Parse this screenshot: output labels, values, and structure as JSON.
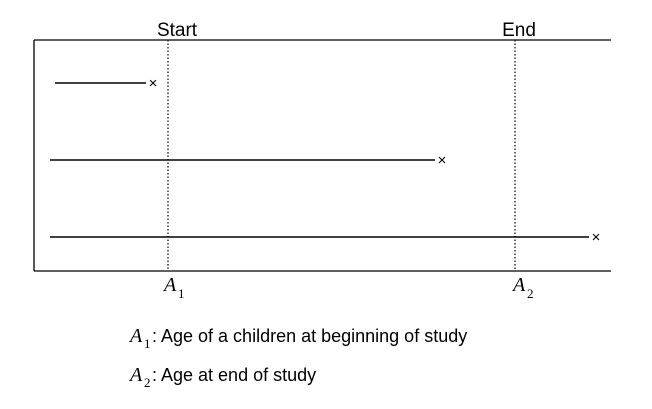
{
  "markers": {
    "start_label": "Start",
    "end_label": "End"
  },
  "axis": {
    "a1": {
      "symbol": "A",
      "subscript": "1"
    },
    "a2": {
      "symbol": "A",
      "subscript": "2"
    }
  },
  "follow_up_lines": [
    {
      "id": "child-1",
      "end_symbol": "×"
    },
    {
      "id": "child-2",
      "end_symbol": "×"
    },
    {
      "id": "child-3",
      "end_symbol": "×"
    }
  ],
  "legend": {
    "a1": {
      "symbol": "A",
      "subscript": "1",
      "text": ": Age of a children at beginning of study"
    },
    "a2": {
      "symbol": "A",
      "subscript": "2",
      "text": ": Age at end of study"
    }
  }
}
